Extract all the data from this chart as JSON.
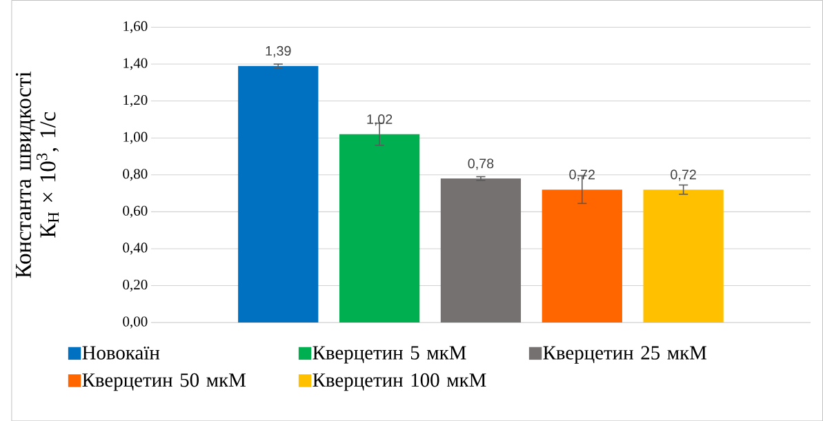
{
  "chart_data": {
    "type": "bar",
    "ylabel": "Константа швидкості К$_{Н}$ × 10$^{3}$, 1/с",
    "categories": [
      null
    ],
    "series": [
      {
        "name": "Новокаїн",
        "color": "#0070c0",
        "values": [
          1.39
        ],
        "errors": [
          0.01
        ],
        "value_labels": [
          "1,39"
        ]
      },
      {
        "name": "Кверцетин 5 мкМ",
        "color": "#00b050",
        "values": [
          1.02
        ],
        "errors": [
          0.06
        ],
        "value_labels": [
          "1,02"
        ]
      },
      {
        "name": "Кверцетин 25 мкМ",
        "color": "#767171",
        "values": [
          0.78
        ],
        "errors": [
          0.01
        ],
        "value_labels": [
          "0,78"
        ]
      },
      {
        "name": "Кверцетин 50 мкМ",
        "color": "#ff6600",
        "values": [
          0.72
        ],
        "errors": [
          0.075
        ],
        "value_labels": [
          "0,72"
        ]
      },
      {
        "name": "Кверцетин 100 мкМ",
        "color": "#ffc000",
        "values": [
          0.72
        ],
        "errors": [
          0.025
        ],
        "value_labels": [
          "0,72"
        ]
      }
    ],
    "ylim": [
      0,
      1.6
    ],
    "yticks": [
      {
        "value": 0,
        "label": "0,00"
      },
      {
        "value": 0.2,
        "label": "0,20"
      },
      {
        "value": 0.4,
        "label": "0,40"
      },
      {
        "value": 0.6,
        "label": "0,60"
      },
      {
        "value": 0.8,
        "label": "0,80"
      },
      {
        "value": 1.0,
        "label": "1,00"
      },
      {
        "value": 1.2,
        "label": "1,20"
      },
      {
        "value": 1.4,
        "label": "1,40"
      },
      {
        "value": 1.6,
        "label": "1,60"
      }
    ],
    "grid": "y",
    "legend": "bottom"
  }
}
